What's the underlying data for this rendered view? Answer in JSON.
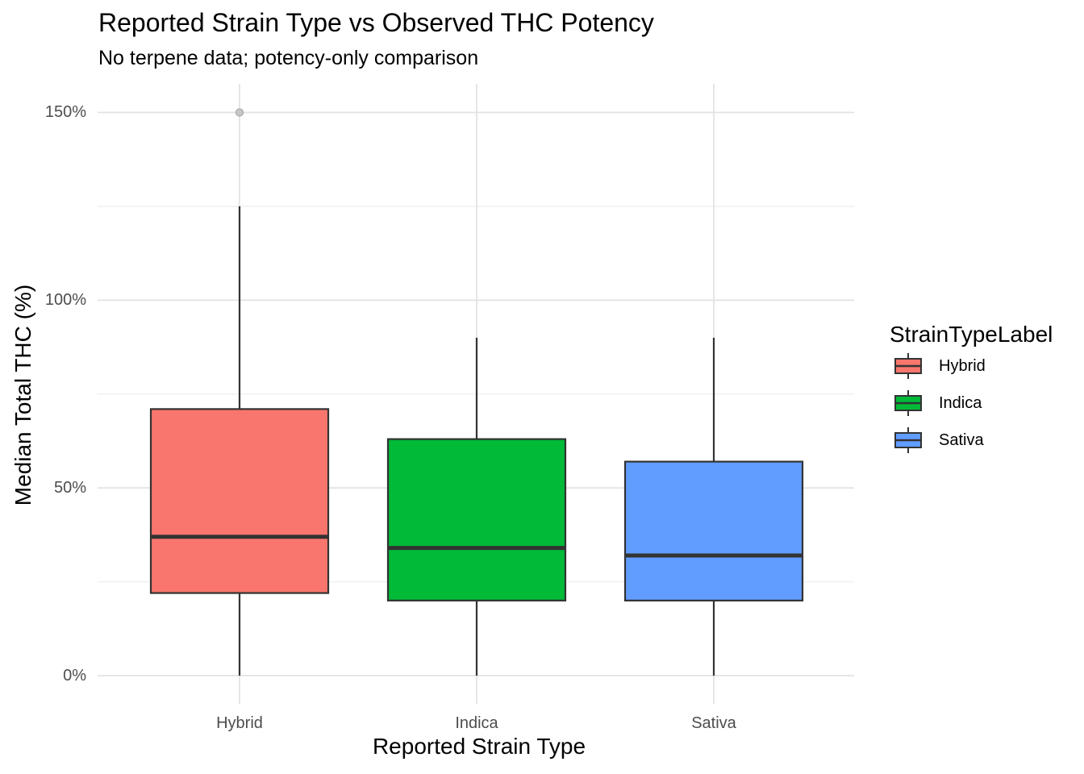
{
  "chart_data": {
    "type": "boxplot",
    "title": "Reported Strain Type vs Observed THC Potency",
    "subtitle": "No terpene data; potency-only comparison",
    "xlabel": "Reported Strain Type",
    "ylabel": "Median Total THC (%)",
    "categories": [
      "Hybrid",
      "Indica",
      "Sativa"
    ],
    "y_axis": {
      "range": [
        -7.5,
        157.5
      ],
      "ticks": [
        {
          "value": 0,
          "label": "0%"
        },
        {
          "value": 50,
          "label": "50%"
        },
        {
          "value": 100,
          "label": "100%"
        },
        {
          "value": 150,
          "label": "150%"
        }
      ],
      "minor_ticks": [
        25,
        75,
        125
      ]
    },
    "grid": true,
    "series": [
      {
        "name": "Hybrid",
        "color": "#F8766D",
        "whisker_low": 0,
        "q1": 22,
        "median": 37,
        "q3": 71,
        "whisker_high": 125,
        "outliers": [
          150
        ]
      },
      {
        "name": "Indica",
        "color": "#00BA38",
        "whisker_low": 0,
        "q1": 20,
        "median": 34,
        "q3": 63,
        "whisker_high": 90,
        "outliers": []
      },
      {
        "name": "Sativa",
        "color": "#619CFF",
        "whisker_low": 0,
        "q1": 20,
        "median": 32,
        "q3": 57,
        "whisker_high": 90,
        "outliers": []
      }
    ],
    "legend": {
      "title": "StrainTypeLabel",
      "position": "right",
      "entries": [
        {
          "label": "Hybrid",
          "color": "#F8766D"
        },
        {
          "label": "Indica",
          "color": "#00BA38"
        },
        {
          "label": "Sativa",
          "color": "#619CFF"
        }
      ]
    },
    "style": {
      "background": "#FFFFFF",
      "box_border": "#333333",
      "median_color": "#333333",
      "outlier_fill": "#C6C6C6",
      "outlier_stroke": "#A5A5A5",
      "grid_major": "#E3E3E3",
      "grid_minor": "#EFEFEF",
      "tick_label_color": "#4D4D4D",
      "text_color": "#000000"
    }
  }
}
